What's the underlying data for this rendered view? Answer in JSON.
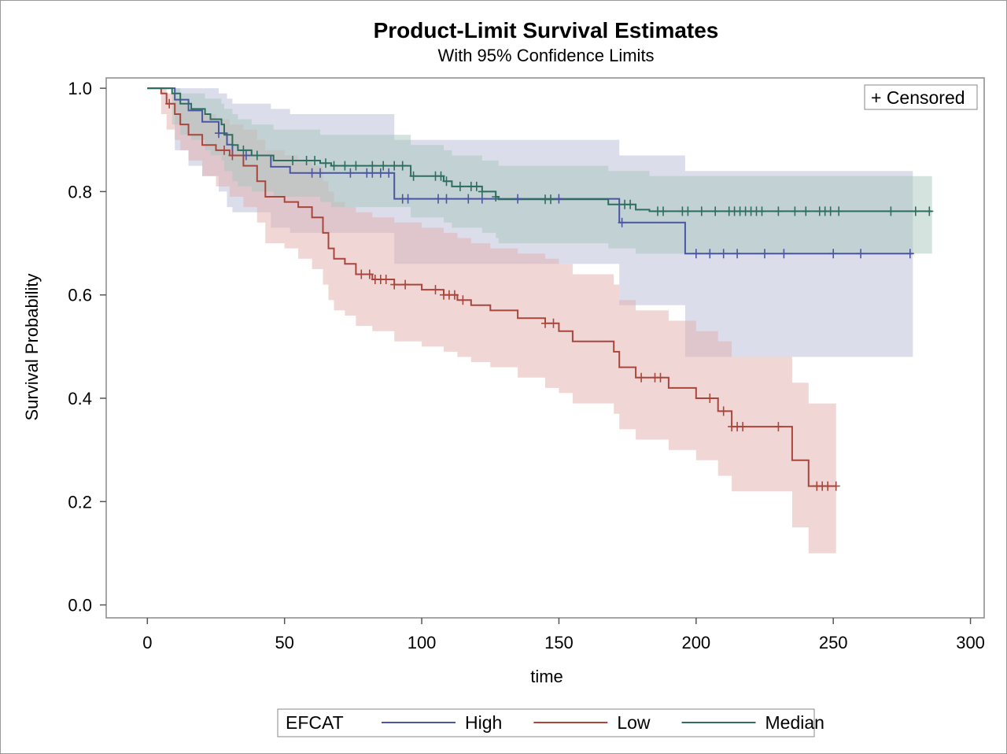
{
  "chart_data": {
    "type": "line",
    "title": "Product-Limit Survival Estimates",
    "subtitle": "With 95% Confidence Limits",
    "xlabel": "time",
    "ylabel": "Survival Probability",
    "xlim": [
      -15,
      305
    ],
    "ylim": [
      -0.025,
      1.02
    ],
    "xticks": [
      "0",
      "50",
      "100",
      "150",
      "200",
      "250",
      "300"
    ],
    "yticks": [
      "0.0",
      "0.2",
      "0.4",
      "0.6",
      "0.8",
      "1.0"
    ],
    "censored_label": "+ Censored",
    "legend_title": "EFCAT",
    "legend_position": "bottom",
    "series": [
      {
        "name": "High",
        "color": "#4a56a0",
        "band_color": "#b7bcd8",
        "steps": [
          [
            0,
            1.0
          ],
          [
            10,
            0.978
          ],
          [
            15,
            0.957
          ],
          [
            20,
            0.935
          ],
          [
            26,
            0.913
          ],
          [
            29,
            0.891
          ],
          [
            31,
            0.87
          ],
          [
            45,
            0.848
          ],
          [
            52,
            0.836
          ],
          [
            90,
            0.786
          ],
          [
            172,
            0.74
          ],
          [
            196,
            0.68
          ],
          [
            279,
            0.68
          ]
        ],
        "ci": [
          [
            0,
            1.0,
            1.0
          ],
          [
            10,
            0.88,
            1.0
          ],
          [
            15,
            0.85,
            1.0
          ],
          [
            20,
            0.83,
            1.0
          ],
          [
            26,
            0.8,
            0.99
          ],
          [
            29,
            0.77,
            0.98
          ],
          [
            31,
            0.76,
            0.97
          ],
          [
            45,
            0.73,
            0.96
          ],
          [
            52,
            0.72,
            0.95
          ],
          [
            90,
            0.66,
            0.9
          ],
          [
            172,
            0.58,
            0.87
          ],
          [
            196,
            0.48,
            0.84
          ],
          [
            279,
            0.48,
            0.84
          ]
        ],
        "censored": [
          26,
          36,
          60,
          63,
          74,
          80,
          82,
          85,
          88,
          93,
          95,
          106,
          109,
          117,
          122,
          135,
          150,
          173,
          200,
          205,
          210,
          215,
          225,
          232,
          250,
          260,
          278
        ]
      },
      {
        "name": "Low",
        "color": "#a8463c",
        "band_color": "#e3aeae",
        "steps": [
          [
            0,
            1.0
          ],
          [
            5,
            0.99
          ],
          [
            7,
            0.97
          ],
          [
            10,
            0.95
          ],
          [
            12,
            0.93
          ],
          [
            15,
            0.91
          ],
          [
            20,
            0.89
          ],
          [
            25,
            0.88
          ],
          [
            30,
            0.87
          ],
          [
            35,
            0.85
          ],
          [
            40,
            0.82
          ],
          [
            43,
            0.79
          ],
          [
            50,
            0.78
          ],
          [
            55,
            0.77
          ],
          [
            60,
            0.75
          ],
          [
            64,
            0.72
          ],
          [
            66,
            0.69
          ],
          [
            68,
            0.67
          ],
          [
            72,
            0.66
          ],
          [
            76,
            0.64
          ],
          [
            82,
            0.63
          ],
          [
            90,
            0.62
          ],
          [
            100,
            0.61
          ],
          [
            108,
            0.6
          ],
          [
            113,
            0.59
          ],
          [
            118,
            0.58
          ],
          [
            125,
            0.57
          ],
          [
            135,
            0.555
          ],
          [
            145,
            0.545
          ],
          [
            150,
            0.53
          ],
          [
            155,
            0.51
          ],
          [
            170,
            0.49
          ],
          [
            172,
            0.46
          ],
          [
            178,
            0.44
          ],
          [
            190,
            0.42
          ],
          [
            200,
            0.4
          ],
          [
            208,
            0.375
          ],
          [
            213,
            0.345
          ],
          [
            235,
            0.28
          ],
          [
            241,
            0.23
          ],
          [
            251,
            0.23
          ]
        ],
        "ci": [
          [
            0,
            1.0,
            1.0
          ],
          [
            5,
            0.95,
            1.0
          ],
          [
            7,
            0.92,
            0.99
          ],
          [
            10,
            0.9,
            0.98
          ],
          [
            12,
            0.88,
            0.97
          ],
          [
            15,
            0.86,
            0.96
          ],
          [
            20,
            0.83,
            0.95
          ],
          [
            25,
            0.81,
            0.94
          ],
          [
            30,
            0.79,
            0.93
          ],
          [
            35,
            0.77,
            0.92
          ],
          [
            40,
            0.74,
            0.9
          ],
          [
            43,
            0.7,
            0.88
          ],
          [
            50,
            0.69,
            0.87
          ],
          [
            55,
            0.67,
            0.86
          ],
          [
            60,
            0.65,
            0.85
          ],
          [
            64,
            0.62,
            0.82
          ],
          [
            66,
            0.59,
            0.8
          ],
          [
            68,
            0.57,
            0.78
          ],
          [
            72,
            0.56,
            0.77
          ],
          [
            76,
            0.54,
            0.76
          ],
          [
            82,
            0.53,
            0.75
          ],
          [
            90,
            0.51,
            0.74
          ],
          [
            100,
            0.5,
            0.73
          ],
          [
            108,
            0.49,
            0.72
          ],
          [
            113,
            0.48,
            0.71
          ],
          [
            118,
            0.47,
            0.7
          ],
          [
            125,
            0.46,
            0.69
          ],
          [
            135,
            0.44,
            0.68
          ],
          [
            145,
            0.42,
            0.67
          ],
          [
            150,
            0.41,
            0.66
          ],
          [
            155,
            0.39,
            0.64
          ],
          [
            170,
            0.37,
            0.62
          ],
          [
            172,
            0.34,
            0.59
          ],
          [
            178,
            0.32,
            0.57
          ],
          [
            190,
            0.3,
            0.55
          ],
          [
            200,
            0.28,
            0.53
          ],
          [
            208,
            0.25,
            0.51
          ],
          [
            213,
            0.22,
            0.48
          ],
          [
            235,
            0.15,
            0.43
          ],
          [
            241,
            0.1,
            0.39
          ],
          [
            251,
            0.1,
            0.39
          ]
        ],
        "censored": [
          8,
          28,
          31,
          78,
          81,
          83,
          85,
          87,
          90,
          94,
          105,
          108,
          110,
          112,
          115,
          145,
          148,
          180,
          185,
          187,
          205,
          210,
          213,
          215,
          217,
          230,
          244,
          246,
          248,
          251
        ]
      },
      {
        "name": "Median",
        "color": "#2e6e5e",
        "band_color": "#a9c7be",
        "steps": [
          [
            0,
            1.0
          ],
          [
            9,
            0.99
          ],
          [
            12,
            0.97
          ],
          [
            16,
            0.96
          ],
          [
            21,
            0.95
          ],
          [
            23,
            0.94
          ],
          [
            27,
            0.93
          ],
          [
            28,
            0.91
          ],
          [
            31,
            0.89
          ],
          [
            33,
            0.88
          ],
          [
            38,
            0.87
          ],
          [
            46,
            0.86
          ],
          [
            63,
            0.855
          ],
          [
            67,
            0.85
          ],
          [
            96,
            0.83
          ],
          [
            108,
            0.82
          ],
          [
            111,
            0.81
          ],
          [
            122,
            0.8
          ],
          [
            127,
            0.79
          ],
          [
            128,
            0.785
          ],
          [
            168,
            0.775
          ],
          [
            178,
            0.765
          ],
          [
            183,
            0.762
          ],
          [
            286,
            0.762
          ]
        ],
        "ci": [
          [
            0,
            1.0,
            1.0
          ],
          [
            9,
            0.93,
            1.0
          ],
          [
            12,
            0.91,
            0.99
          ],
          [
            16,
            0.9,
            0.99
          ],
          [
            21,
            0.88,
            0.98
          ],
          [
            23,
            0.87,
            0.98
          ],
          [
            27,
            0.86,
            0.97
          ],
          [
            28,
            0.84,
            0.96
          ],
          [
            31,
            0.82,
            0.95
          ],
          [
            33,
            0.81,
            0.94
          ],
          [
            38,
            0.8,
            0.93
          ],
          [
            46,
            0.79,
            0.92
          ],
          [
            63,
            0.78,
            0.91
          ],
          [
            67,
            0.77,
            0.91
          ],
          [
            96,
            0.75,
            0.89
          ],
          [
            108,
            0.74,
            0.88
          ],
          [
            111,
            0.73,
            0.87
          ],
          [
            122,
            0.72,
            0.86
          ],
          [
            127,
            0.71,
            0.86
          ],
          [
            128,
            0.7,
            0.85
          ],
          [
            168,
            0.69,
            0.84
          ],
          [
            178,
            0.68,
            0.84
          ],
          [
            183,
            0.68,
            0.83
          ],
          [
            286,
            0.68,
            0.83
          ]
        ],
        "censored": [
          35,
          40,
          53,
          58,
          61,
          65,
          68,
          72,
          76,
          82,
          86,
          90,
          93,
          97,
          105,
          107,
          109,
          114,
          118,
          120,
          122,
          127,
          145,
          147,
          174,
          176,
          186,
          188,
          195,
          197,
          202,
          207,
          212,
          214,
          216,
          218,
          220,
          222,
          224,
          230,
          236,
          240,
          245,
          247,
          249,
          252,
          271,
          280,
          285
        ]
      }
    ]
  }
}
